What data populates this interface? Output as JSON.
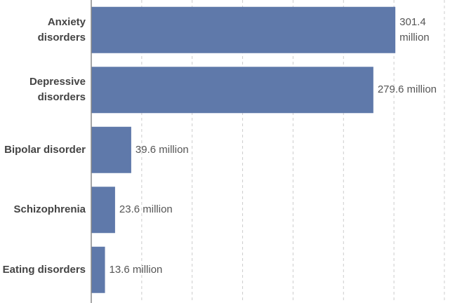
{
  "chart_data": {
    "type": "bar",
    "orientation": "horizontal",
    "categories": [
      "Anxiety disorders",
      "Depressive disorders",
      "Bipolar disorder",
      "Schizophrenia",
      "Eating disorders"
    ],
    "values": [
      301.4,
      279.6,
      39.6,
      23.6,
      13.6
    ],
    "value_labels": [
      "301.4 million",
      "279.6 million",
      "39.6 million",
      "23.6 million",
      "13.6 million"
    ],
    "color": "#5f79aa",
    "xlim": [
      0,
      350
    ],
    "xticks": [
      50,
      100,
      150,
      200,
      250,
      300,
      350
    ],
    "grid": true
  }
}
